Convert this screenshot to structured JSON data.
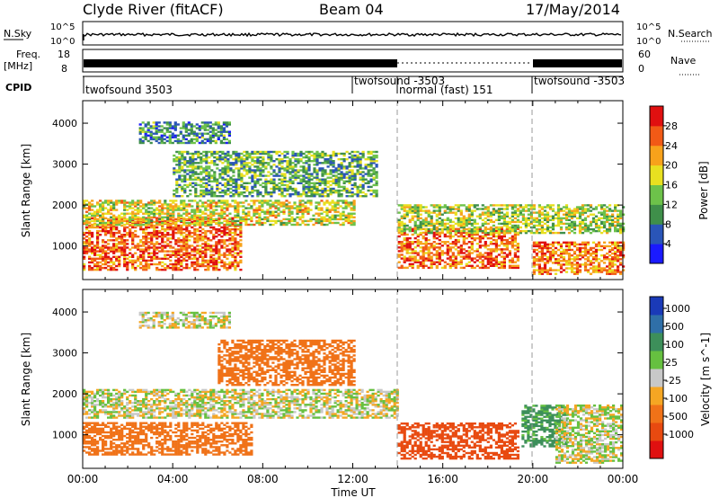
{
  "header": {
    "station": "Clyde River (fitACF)",
    "beam": "Beam 04",
    "date": "17/May/2014"
  },
  "noise_panel": {
    "left_label": "N.Sky",
    "right_label": "N.Search",
    "left_ticks": [
      "10^5",
      "10^0"
    ],
    "right_ticks": [
      "10^5",
      "10^0"
    ]
  },
  "freq_panel": {
    "left_label_1": "Freq.",
    "left_label_2": "[MHz]",
    "right_label": "Nave",
    "left_ticks": [
      "18",
      "8"
    ],
    "right_ticks": [
      "60",
      "0"
    ]
  },
  "cpid_panel": {
    "label": "CPID",
    "modes": [
      {
        "name": "twofsound 3503",
        "start_h": 0,
        "end_h": 12
      },
      {
        "name": "twofsound -3503",
        "start_h": 12,
        "end_h": 14
      },
      {
        "name": "normal (fast) 151",
        "start_h": 14,
        "end_h": 19.3
      },
      {
        "name": "twofsound -3503",
        "start_h": 19.3,
        "end_h": 24
      }
    ]
  },
  "axes": {
    "ylabel": "Slant Range [km]",
    "xlabel": "Time UT",
    "x_ticks": [
      "00:00",
      "04:00",
      "08:00",
      "12:00",
      "16:00",
      "20:00",
      "00:00"
    ],
    "y_ticks": [
      "1000",
      "2000",
      "3000",
      "4000"
    ],
    "xlim_h": [
      0,
      24
    ],
    "ylim_km": [
      180,
      4550
    ]
  },
  "power_scale": {
    "label": "Power [dB]",
    "ticks": [
      "4",
      "8",
      "12",
      "16",
      "20",
      "24",
      "28"
    ],
    "colors": [
      "#1a1aff",
      "#2a55b8",
      "#3f8f4a",
      "#6dc24a",
      "#e8e020",
      "#f7a21b",
      "#f15a16",
      "#e01010"
    ]
  },
  "velocity_scale": {
    "label": "Velocity [m s^-1]",
    "ticks": [
      "1000",
      "500",
      "100",
      "25",
      "-25",
      "-100",
      "-500",
      "-1000"
    ],
    "colors": [
      "#1a3ab8",
      "#2f6fa8",
      "#3d8f5a",
      "#66c040",
      "#c8c8c8",
      "#f5a623",
      "#f07218",
      "#e84a10",
      "#e01010"
    ]
  },
  "chart_data": [
    {
      "type": "heatmap",
      "title": "Power",
      "xlabel": "Time UT",
      "ylabel": "Slant Range [km]",
      "colorbar_label": "Power [dB]",
      "xlim_h": [
        0,
        24
      ],
      "ylim_km": [
        180,
        4550
      ],
      "regions": [
        {
          "t": [
            0,
            7
          ],
          "r": [
            400,
            1700
          ],
          "value_db": 26
        },
        {
          "t": [
            0,
            12
          ],
          "r": [
            1500,
            2100
          ],
          "value_db": 18
        },
        {
          "t": [
            2.5,
            6.5
          ],
          "r": [
            3500,
            4000
          ],
          "value_db": 10
        },
        {
          "t": [
            4,
            13
          ],
          "r": [
            2200,
            3300
          ],
          "value_db": 12
        },
        {
          "t": [
            14,
            19.3
          ],
          "r": [
            450,
            1400
          ],
          "value_db": 25
        },
        {
          "t": [
            14,
            24
          ],
          "r": [
            1300,
            2000
          ],
          "value_db": 16
        },
        {
          "t": [
            20,
            24
          ],
          "r": [
            300,
            1100
          ],
          "value_db": 24
        }
      ]
    },
    {
      "type": "heatmap",
      "title": "Velocity",
      "xlabel": "Time UT",
      "ylabel": "Slant Range [km]",
      "colorbar_label": "Velocity [m s^-1]",
      "xlim_h": [
        0,
        24
      ],
      "ylim_km": [
        180,
        4550
      ],
      "regions": [
        {
          "t": [
            0,
            7.5
          ],
          "r": [
            500,
            1300
          ],
          "value_ms": -300
        },
        {
          "t": [
            0,
            14
          ],
          "r": [
            1400,
            2100
          ],
          "value_ms": 0
        },
        {
          "t": [
            2.5,
            6.5
          ],
          "r": [
            3600,
            4000
          ],
          "value_ms": 0
        },
        {
          "t": [
            6,
            12
          ],
          "r": [
            2200,
            3300
          ],
          "value_ms": -200
        },
        {
          "t": [
            14,
            19.3
          ],
          "r": [
            400,
            1300
          ],
          "value_ms": -700
        },
        {
          "t": [
            19.5,
            21.5
          ],
          "r": [
            700,
            1700
          ],
          "value_ms": 150
        },
        {
          "t": [
            21,
            24
          ],
          "r": [
            300,
            1700
          ],
          "value_ms": 0
        }
      ]
    }
  ]
}
